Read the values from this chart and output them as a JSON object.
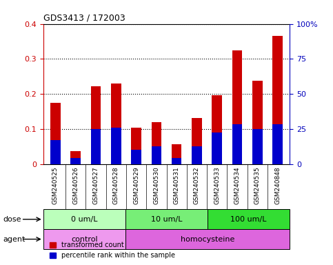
{
  "title": "GDS3413 / 172003",
  "samples": [
    "GSM240525",
    "GSM240526",
    "GSM240527",
    "GSM240528",
    "GSM240529",
    "GSM240530",
    "GSM240531",
    "GSM240532",
    "GSM240533",
    "GSM240534",
    "GSM240535",
    "GSM240848"
  ],
  "red_values": [
    0.175,
    0.038,
    0.222,
    0.23,
    0.105,
    0.12,
    0.058,
    0.132,
    0.197,
    0.325,
    0.238,
    0.365
  ],
  "blue_values": [
    0.068,
    0.018,
    0.1,
    0.105,
    0.042,
    0.052,
    0.018,
    0.052,
    0.09,
    0.115,
    0.1,
    0.115
  ],
  "ylim_left": [
    0,
    0.4
  ],
  "ylim_right": [
    0,
    100
  ],
  "yticks_left": [
    0,
    0.1,
    0.2,
    0.3,
    0.4
  ],
  "yticks_right": [
    0,
    25,
    50,
    75,
    100
  ],
  "ytick_labels_left": [
    "0",
    "0.1",
    "0.2",
    "0.3",
    "0.4"
  ],
  "ytick_labels_right": [
    "0",
    "25",
    "50",
    "75",
    "100%"
  ],
  "dose_groups": [
    {
      "label": "0 um/L",
      "start": 0,
      "end": 4,
      "color": "#bbffbb"
    },
    {
      "label": "10 um/L",
      "start": 4,
      "end": 8,
      "color": "#77ee77"
    },
    {
      "label": "100 um/L",
      "start": 8,
      "end": 12,
      "color": "#33dd33"
    }
  ],
  "agent_groups": [
    {
      "label": "control",
      "start": 0,
      "end": 4,
      "color": "#ee99ee"
    },
    {
      "label": "homocysteine",
      "start": 4,
      "end": 12,
      "color": "#dd66dd"
    }
  ],
  "red_color": "#cc0000",
  "blue_color": "#0000cc",
  "bar_width": 0.5,
  "tick_label_area_color": "#cccccc",
  "left_axis_color": "#cc0000",
  "right_axis_color": "#0000bb"
}
